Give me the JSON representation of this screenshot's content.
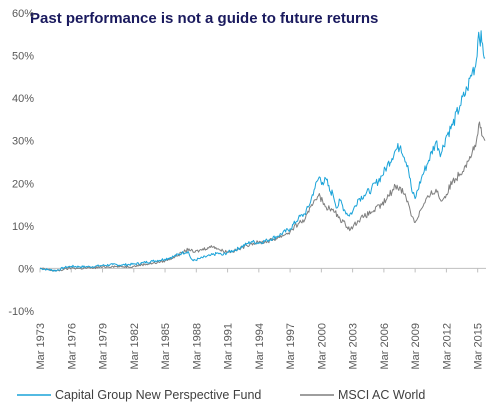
{
  "chart_data": {
    "type": "line",
    "title": "Past performance is not a guide to future returns",
    "title_color": "#1a1a5e",
    "y_ticks": [
      "60%",
      "50%",
      "40%",
      "30%",
      "20%",
      "10%",
      "0%",
      "-10%"
    ],
    "ylim": [
      -10,
      60
    ],
    "x_ticks": [
      "Mar 1973",
      "Mar 1976",
      "Mar 1979",
      "Mar 1982",
      "Mar 1985",
      "Mar 1988",
      "Mar 1991",
      "Mar 1994",
      "Mar 1997",
      "Mar 2000",
      "Mar 2003",
      "Mar 2006",
      "Mar 2009",
      "Mar 2012",
      "Mar 2015"
    ],
    "xlim": [
      1973.2,
      2016.0
    ],
    "grid": false,
    "legend_position": "bottom",
    "series": [
      {
        "name": "Capital Group New Perspective Fund",
        "color": "#1aa3d9",
        "x": [
          1973.2,
          1974.0,
          1974.8,
          1975.5,
          1976.2,
          1977.0,
          1978.0,
          1979.2,
          1980.2,
          1981.0,
          1982.2,
          1983.0,
          1984.0,
          1985.2,
          1986.0,
          1986.8,
          1987.4,
          1987.7,
          1987.9,
          1988.5,
          1989.5,
          1990.3,
          1990.7,
          1991.2,
          1992.0,
          1993.0,
          1993.5,
          1994.2,
          1995.0,
          1996.0,
          1997.2,
          1998.0,
          1998.6,
          1999.0,
          1999.5,
          2000.0,
          2000.3,
          2000.7,
          2001.0,
          2001.3,
          2001.7,
          2002.0,
          2002.4,
          2002.8,
          2003.2,
          2003.7,
          2004.3,
          2005.0,
          2006.0,
          2006.5,
          2007.3,
          2007.8,
          2008.5,
          2008.9,
          2009.2,
          2009.8,
          2010.5,
          2011.2,
          2011.7,
          2012.2,
          2012.8,
          2013.5,
          2014.2,
          2014.7,
          2015.0,
          2015.3,
          2015.6,
          2015.9
        ],
        "values": [
          0.0,
          -0.3,
          -0.5,
          0.2,
          0.5,
          0.4,
          0.4,
          0.7,
          0.9,
          0.8,
          1.0,
          1.3,
          1.7,
          2.2,
          2.8,
          3.6,
          4.0,
          2.3,
          1.8,
          2.3,
          3.0,
          3.6,
          3.1,
          3.8,
          4.4,
          5.7,
          6.3,
          6.0,
          6.6,
          7.6,
          9.3,
          11.8,
          12.8,
          14.6,
          18.5,
          21.5,
          20.2,
          20.8,
          18.2,
          17.6,
          14.2,
          16.0,
          13.8,
          12.5,
          13.3,
          16.2,
          17.2,
          18.6,
          21.7,
          24.0,
          27.7,
          28.8,
          24.2,
          18.0,
          16.4,
          21.2,
          25.4,
          29.8,
          27.0,
          31.2,
          33.7,
          38.2,
          42.2,
          46.5,
          47.5,
          55.5,
          53.2,
          49.5
        ]
      },
      {
        "name": "MSCI AC World",
        "color": "#7f7f7f",
        "x": [
          1973.2,
          1974.0,
          1974.8,
          1975.5,
          1976.2,
          1977.0,
          1978.0,
          1979.2,
          1980.2,
          1981.0,
          1982.2,
          1983.0,
          1984.0,
          1985.2,
          1986.0,
          1986.8,
          1987.5,
          1987.9,
          1988.5,
          1989.3,
          1989.9,
          1990.5,
          1991.2,
          1992.0,
          1993.0,
          1993.5,
          1994.2,
          1995.0,
          1996.0,
          1997.2,
          1998.0,
          1998.6,
          1999.0,
          1999.5,
          2000.0,
          2000.4,
          2001.0,
          2001.5,
          2002.0,
          2002.5,
          2003.0,
          2003.7,
          2004.3,
          2005.0,
          2006.0,
          2006.5,
          2007.3,
          2007.8,
          2008.5,
          2008.9,
          2009.2,
          2009.8,
          2010.5,
          2011.2,
          2011.7,
          2012.2,
          2012.8,
          2013.5,
          2014.2,
          2014.7,
          2015.0,
          2015.3,
          2015.6,
          2015.9
        ],
        "values": [
          0.0,
          -0.3,
          -0.6,
          -0.2,
          0.1,
          0.0,
          0.1,
          0.3,
          0.5,
          0.4,
          0.5,
          0.9,
          1.2,
          1.8,
          2.6,
          3.6,
          4.6,
          3.8,
          4.2,
          4.9,
          5.2,
          4.3,
          3.9,
          4.2,
          5.4,
          5.9,
          6.1,
          6.3,
          7.2,
          8.6,
          10.6,
          11.4,
          13.2,
          16.0,
          17.6,
          15.0,
          14.0,
          13.2,
          11.6,
          10.4,
          9.2,
          11.2,
          12.2,
          13.2,
          14.9,
          16.4,
          19.4,
          19.0,
          15.8,
          12.2,
          10.8,
          14.0,
          16.8,
          18.6,
          15.8,
          17.4,
          20.6,
          22.2,
          25.2,
          27.6,
          28.6,
          33.8,
          31.2,
          30.0
        ]
      }
    ]
  }
}
